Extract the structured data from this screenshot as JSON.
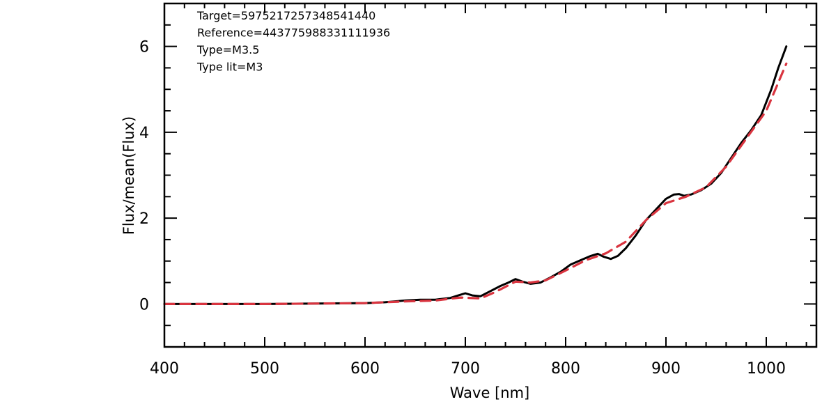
{
  "chart_data": {
    "type": "line",
    "title": "",
    "xlabel": "Wave [nm]",
    "ylabel": "Flux/mean(Flux)",
    "xlim": [
      400,
      1050
    ],
    "ylim": [
      -1,
      7
    ],
    "x_ticks": [
      400,
      500,
      600,
      700,
      800,
      900,
      1000
    ],
    "y_ticks": [
      0,
      2,
      4,
      6
    ],
    "annotations": [
      "Target=5975217257348541440",
      "Reference=443775988331111936",
      "Type=M3.5",
      "Type lit=M3"
    ],
    "grid": false,
    "series": [
      {
        "style": "solid",
        "color": "#000000",
        "x": [
          400,
          500,
          600,
          620,
          640,
          655,
          670,
          685,
          693,
          700,
          707,
          715,
          725,
          735,
          743,
          750,
          757,
          765,
          775,
          785,
          795,
          805,
          815,
          825,
          832,
          838,
          845,
          852,
          860,
          870,
          880,
          890,
          900,
          908,
          913,
          918,
          925,
          935,
          945,
          955,
          965,
          975,
          985,
          995,
          1005,
          1012,
          1020
        ],
        "y": [
          0,
          0,
          0.02,
          0.04,
          0.08,
          0.1,
          0.1,
          0.14,
          0.2,
          0.25,
          0.2,
          0.18,
          0.3,
          0.42,
          0.5,
          0.58,
          0.52,
          0.47,
          0.5,
          0.62,
          0.75,
          0.92,
          1.02,
          1.12,
          1.17,
          1.1,
          1.05,
          1.12,
          1.3,
          1.6,
          1.95,
          2.2,
          2.45,
          2.55,
          2.56,
          2.52,
          2.55,
          2.65,
          2.8,
          3.05,
          3.4,
          3.75,
          4.05,
          4.4,
          5.0,
          5.5,
          6.0
        ]
      },
      {
        "style": "dashed",
        "color": "#d9343f",
        "x": [
          400,
          500,
          600,
          640,
          670,
          695,
          715,
          730,
          750,
          765,
          780,
          800,
          820,
          840,
          860,
          880,
          900,
          920,
          940,
          960,
          980,
          1000,
          1020
        ],
        "y": [
          0,
          0,
          0.02,
          0.06,
          0.08,
          0.15,
          0.13,
          0.28,
          0.52,
          0.5,
          0.55,
          0.78,
          1.02,
          1.18,
          1.45,
          1.95,
          2.35,
          2.5,
          2.72,
          3.2,
          3.85,
          4.5,
          5.6
        ]
      }
    ]
  }
}
